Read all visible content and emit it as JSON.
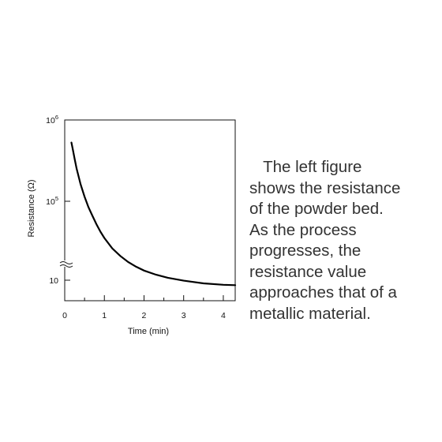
{
  "chart_data": {
    "type": "line",
    "title": "",
    "xlabel": "Time (min)",
    "ylabel": "Resistance (Ω)",
    "x_scale": "linear",
    "y_scale": "log, broken axis",
    "xlim": [
      0,
      4.3
    ],
    "x_ticks": [
      "0",
      "1",
      "2",
      "3",
      "4"
    ],
    "y_ticks": [
      {
        "base": "10",
        "exp": "6"
      },
      {
        "base": "10",
        "exp": "5"
      },
      {
        "base": "10",
        "exp": ""
      }
    ],
    "axis_break": true,
    "grid": false,
    "series": [
      {
        "color": "#000000",
        "x": [
          0.17,
          0.2,
          0.25,
          0.3,
          0.4,
          0.5,
          0.6,
          0.7,
          0.8,
          0.9,
          1.0,
          1.2,
          1.4,
          1.6,
          1.8,
          2.0,
          2.3,
          2.6,
          3.0,
          3.5,
          4.0,
          4.3
        ],
        "y_position_percent": [
          87.5,
          84.3,
          78.4,
          73.0,
          64.4,
          57.6,
          51.7,
          46.9,
          42.3,
          38.2,
          34.7,
          28.9,
          24.8,
          21.4,
          18.8,
          16.7,
          14.4,
          12.7,
          11.1,
          9.6,
          8.8,
          8.6
        ]
      }
    ]
  },
  "caption": {
    "lines": [
      "   The left figure",
      "shows the resistance",
      "of the powder bed.",
      "As the process",
      "progresses, the",
      "resistance value",
      "approaches that of a",
      "metallic material."
    ]
  }
}
